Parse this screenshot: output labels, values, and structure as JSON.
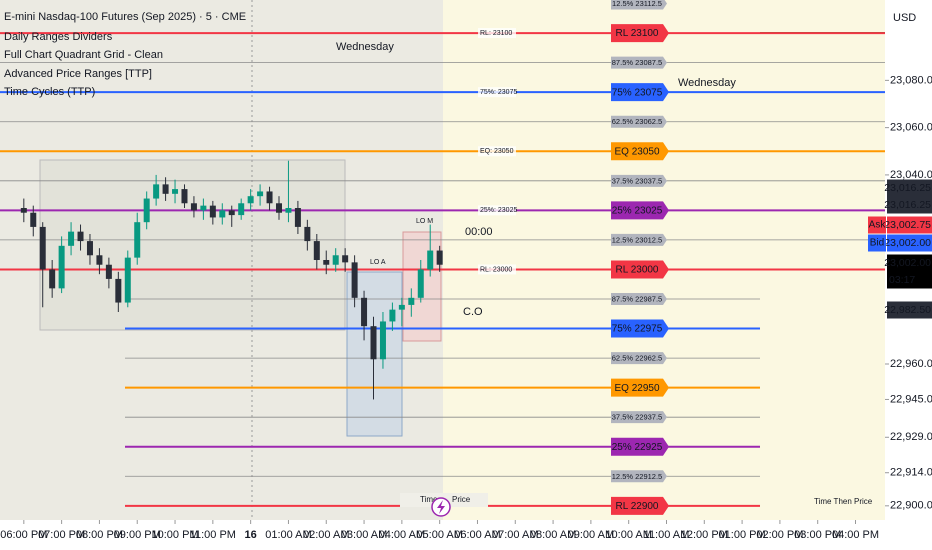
{
  "chart_data": {
    "type": "candlestick",
    "title": "E-mini Nasdaq-100 Futures (Sep 2025) · 5 · CME",
    "indicators": [
      "Daily Ranges Dividers",
      "Full Chart Quadrant Grid - Clean",
      "Advanced Price Ranges [TTP]",
      "Time Cycles (TTP)"
    ],
    "currency": "USD",
    "up_color": "#089981",
    "down_color": "#2a2e39",
    "ylim": [
      22894,
      23114
    ],
    "yticks": [
      {
        "value": 23080,
        "label": "23,080.00"
      },
      {
        "value": 23060,
        "label": "23,060.00"
      },
      {
        "value": 23040,
        "label": "23,040.00"
      },
      {
        "value": 22960,
        "label": "22,960.00"
      },
      {
        "value": 22945,
        "label": "22,945.00"
      },
      {
        "value": 22929,
        "label": "22,929.00"
      },
      {
        "value": 22914,
        "label": "22,914.00"
      },
      {
        "value": 22900,
        "label": "22,900.00"
      }
    ],
    "xlim": [
      -0.63,
      22.78
    ],
    "xticks": [
      {
        "value": 0,
        "label": "06:00 PM"
      },
      {
        "value": 1,
        "label": "07:00 PM"
      },
      {
        "value": 2,
        "label": "08:00 PM"
      },
      {
        "value": 3,
        "label": "09:00 PM"
      },
      {
        "value": 4,
        "label": "10:00 PM"
      },
      {
        "value": 5,
        "label": "11:00 PM"
      },
      {
        "value": 6,
        "label": "16"
      },
      {
        "value": 7,
        "label": "01:00 AM"
      },
      {
        "value": 8,
        "label": "02:00 AM"
      },
      {
        "value": 9,
        "label": "03:00 AM"
      },
      {
        "value": 10,
        "label": "04:00 AM"
      },
      {
        "value": 11,
        "label": "05:00 AM"
      },
      {
        "value": 12,
        "label": "06:00 AM"
      },
      {
        "value": 13,
        "label": "07:00 AM"
      },
      {
        "value": 14,
        "label": "08:00 AM"
      },
      {
        "value": 15,
        "label": "09:00 AM"
      },
      {
        "value": 16,
        "label": "10:00 AM"
      },
      {
        "value": 17,
        "label": "11:00 AM"
      },
      {
        "value": 18,
        "label": "12:00 PM"
      },
      {
        "value": 19,
        "label": "01:00 PM"
      },
      {
        "value": 20,
        "label": "02:00 PM"
      },
      {
        "value": 21,
        "label": "03:00 PM"
      },
      {
        "value": 22,
        "label": "04:00 PM"
      }
    ],
    "x": [
      0,
      0.25,
      0.5,
      0.75,
      1,
      1.25,
      1.5,
      1.75,
      2,
      2.25,
      2.5,
      2.75,
      3,
      3.25,
      3.5,
      3.75,
      4,
      4.25,
      4.5,
      4.75,
      5,
      5.25,
      5.5,
      5.75,
      6,
      6.25,
      6.5,
      6.75,
      7,
      7.25,
      7.5,
      7.75,
      8,
      8.25,
      8.5,
      8.75,
      9,
      9.25,
      9.5,
      9.75,
      10,
      10.25,
      10.5,
      10.75,
      11
    ],
    "open": [
      23026,
      23024,
      23018,
      23000,
      22992,
      23010,
      23016,
      23012,
      23006,
      23002,
      22996,
      22986,
      23005,
      23020,
      23030,
      23036,
      23032,
      23034,
      23028,
      23025,
      23027,
      23022,
      23025,
      23023,
      23028,
      23031,
      23033,
      23028,
      23024,
      23026,
      23018,
      23012,
      23004,
      23002,
      23006,
      23003,
      22988,
      22976,
      22962,
      22978,
      22983,
      22985,
      22988,
      23000,
      23008
    ],
    "high": [
      23030,
      23027,
      23020,
      23004,
      23014,
      23020,
      23019,
      23015,
      23009,
      23005,
      22999,
      23008,
      23024,
      23033,
      23040,
      23039,
      23038,
      23036,
      23031,
      23030,
      23029,
      23028,
      23027,
      23030,
      23034,
      23036,
      23035,
      23031,
      23046,
      23029,
      23021,
      23015,
      23008,
      23009,
      23009,
      23006,
      22991,
      22980,
      22982,
      22986,
      22988,
      22992,
      23004,
      23019,
      23010
    ],
    "low": [
      23020,
      23014,
      22984,
      22988,
      22990,
      23006,
      23008,
      23002,
      22998,
      22992,
      22982,
      22984,
      23002,
      23017,
      23027,
      23029,
      23028,
      23026,
      23022,
      23021,
      23019,
      23019,
      23018,
      23021,
      23025,
      23027,
      23025,
      23021,
      23020,
      23015,
      23008,
      23000,
      22998,
      22999,
      22999,
      22984,
      22970,
      22945,
      22958,
      22974,
      22976,
      22980,
      22986,
      22997,
      22999
    ],
    "close": [
      23024,
      23018,
      23000,
      22992,
      23010,
      23016,
      23012,
      23006,
      23002,
      22996,
      22986,
      23005,
      23020,
      23030,
      23036,
      23032,
      23034,
      23028,
      23025,
      23027,
      23022,
      23025,
      23023,
      23028,
      23031,
      23033,
      23028,
      23024,
      23026,
      23018,
      23012,
      23004,
      23002,
      23006,
      23003,
      22988,
      22976,
      22962,
      22978,
      22983,
      22985,
      22988,
      23000,
      23008,
      23002
    ],
    "levels": [
      {
        "label": "12.5% 23112.5",
        "value": 23112.5,
        "color": "#b2b5be"
      },
      {
        "label": "RL 23100",
        "inline_label": "RL: 23100",
        "value": 23100,
        "color": "#f23645"
      },
      {
        "label": "87.5% 23087.5",
        "value": 23087.5,
        "color": "#b2b5be"
      },
      {
        "label": "75% 23075",
        "inline_label": "75%: 23075",
        "value": 23075,
        "color": "#2962ff"
      },
      {
        "label": "62.5% 23062.5",
        "value": 23062.5,
        "color": "#b2b5be"
      },
      {
        "label": "EQ 23050",
        "inline_label": "EQ: 23050",
        "value": 23050,
        "color": "#ff9800"
      },
      {
        "label": "37.5% 23037.5",
        "value": 23037.5,
        "color": "#b2b5be"
      },
      {
        "label": "25% 23025",
        "inline_label": "25%: 23025",
        "value": 23025,
        "color": "#9c27b0"
      },
      {
        "label": "12.5% 23012.5",
        "value": 23012.5,
        "color": "#b2b5be"
      },
      {
        "label": "RL 23000",
        "inline_label": "RL: 23000",
        "value": 23000,
        "color": "#f23645"
      },
      {
        "label": "87.5% 22987.5",
        "value": 22987.5,
        "color": "#b2b5be"
      },
      {
        "label": "75% 22975",
        "value": 22975,
        "color": "#2962ff"
      },
      {
        "label": "62.5% 22962.5",
        "value": 22962.5,
        "color": "#b2b5be"
      },
      {
        "label": "EQ 22950",
        "value": 22950,
        "color": "#ff9800"
      },
      {
        "label": "37.5% 22937.5",
        "value": 22937.5,
        "color": "#b2b5be"
      },
      {
        "label": "25% 22925",
        "value": 22925,
        "color": "#9c27b0"
      },
      {
        "label": "12.5% 22912.5",
        "value": 22912.5,
        "color": "#b2b5be"
      },
      {
        "label": "RL 22900",
        "value": 22900,
        "color": "#f23645"
      }
    ],
    "price_tags": [
      {
        "value": 23016.25,
        "label": "23,016.25",
        "color": "#2a2e39"
      },
      {
        "value": 23016.25,
        "label": "23,016.25",
        "color": "#2a2e39"
      },
      {
        "value": 23002.75,
        "label": "23,002.75",
        "prefix": "Ask",
        "color": "#f23645"
      },
      {
        "value": 23002,
        "label": "23,002.00",
        "prefix": "Bid",
        "color": "#2962ff"
      },
      {
        "value": 23002,
        "label": "23,002.00",
        "countdown": "03:17",
        "color": "#000000"
      },
      {
        "value": 22982.5,
        "label": "22,982.50",
        "color": "#2a2e39"
      }
    ],
    "annotations": [
      "Wednesday",
      "Wednesday",
      "LO A",
      "LO M",
      "00:00",
      "C.O",
      "Time Then Price",
      "Time",
      "Price"
    ]
  }
}
